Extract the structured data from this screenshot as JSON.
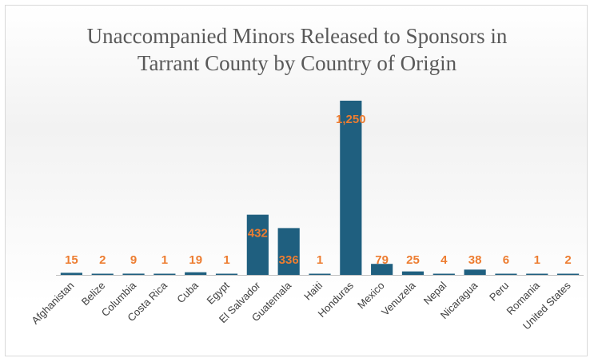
{
  "chart_data": {
    "type": "bar",
    "title": "Unaccompanied Minors Released to Sponsors in Tarrant County by Country of Origin",
    "title_lines": [
      "Unaccompanied Minors Released to Sponsors in",
      "Tarrant County by Country of Origin"
    ],
    "categories": [
      "Afghanistan",
      "Belize",
      "Columbia",
      "Costa Rica",
      "Cuba",
      "Egypt",
      "El Salvador",
      "Guatemala",
      "Haiti",
      "Honduras",
      "Mexico",
      "Venuzela",
      "Nepal",
      "Nicaragua",
      "Peru",
      "Romania",
      "United States"
    ],
    "values": [
      15,
      2,
      9,
      1,
      19,
      1,
      432,
      336,
      1,
      1250,
      79,
      25,
      4,
      38,
      6,
      1,
      2
    ],
    "data_labels": [
      "15",
      "2",
      "9",
      "1",
      "19",
      "1",
      "432",
      "336",
      "1",
      "1,250",
      "79",
      "25",
      "4",
      "38",
      "6",
      "1",
      "2"
    ],
    "ylim": [
      0,
      1250
    ],
    "grid": false,
    "legend": "none",
    "colors": {
      "bar": "#1f5f7f",
      "label": "#ed7d31",
      "title": "#595959"
    }
  }
}
